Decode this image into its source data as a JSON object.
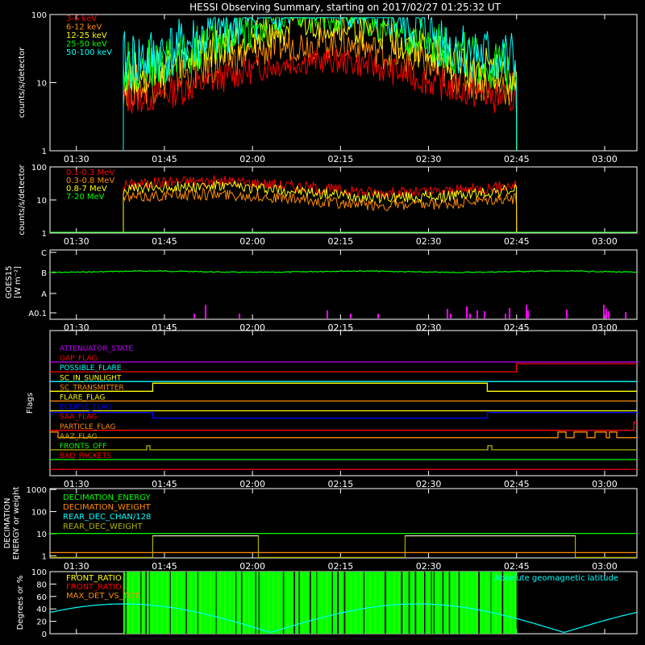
{
  "title": "HESSI Observing Summary, starting on 2017/02/27 01:25:32 UT",
  "time_ticks": [
    "01:30",
    "01:45",
    "02:00",
    "02:15",
    "02:30",
    "02:45",
    "03:00"
  ],
  "colors": {
    "red": "#ff0000",
    "orange": "#ff8c00",
    "yellow": "#ffff00",
    "green": "#00ff00",
    "cyan": "#00ffff",
    "magenta": "#ff00ff",
    "blue": "#0000ff",
    "olive": "#b0b000",
    "orchid": "#c000ff",
    "white": "#ffffff"
  },
  "chart_data": [
    {
      "id": "panel1",
      "type": "line",
      "ylabel": "counts/s/detector",
      "scale": "log",
      "ylim": [
        1,
        100
      ],
      "yticks": [
        "1",
        "10",
        "100"
      ],
      "series": [
        {
          "name": "3-6 keV",
          "color": "#ff0000"
        },
        {
          "name": "6-12 keV",
          "color": "#ff8c00"
        },
        {
          "name": "12-25 keV",
          "color": "#ffff00"
        },
        {
          "name": "25-50 keV",
          "color": "#00ff00"
        },
        {
          "name": "50-100 keV",
          "color": "#00ffff"
        }
      ]
    },
    {
      "id": "panel2",
      "type": "line",
      "ylabel": "counts/s/detector",
      "scale": "log",
      "ylim": [
        1,
        100
      ],
      "yticks": [
        "1",
        "10",
        "100"
      ],
      "series": [
        {
          "name": "0.1-0.3 MeV",
          "color": "#ff0000"
        },
        {
          "name": "0.3-0.8 MeV",
          "color": "#ff8c00"
        },
        {
          "name": "0.8-7 MeV",
          "color": "#ffff00"
        },
        {
          "name": "7-20 MeV",
          "color": "#00ff00"
        }
      ]
    },
    {
      "id": "panel3",
      "type": "line",
      "ylabel_lines": [
        "GOES15",
        "[W m⁻²]"
      ],
      "yticks": [
        "C",
        "B",
        "A",
        "A0.1"
      ]
    },
    {
      "id": "panel4",
      "type": "line",
      "ylabel": "Flags",
      "flags": [
        {
          "name": "ATTENUATOR_STATE",
          "color": "#c000ff"
        },
        {
          "name": "GAP_FLAG",
          "color": "#ff0000"
        },
        {
          "name": "POSSIBLE_FLARE",
          "color": "#00ffff"
        },
        {
          "name": "SC_IN_SUNLIGHT",
          "color": "#ffff00"
        },
        {
          "name": "SC_TRANSMITTER",
          "color": "#ff8c00"
        },
        {
          "name": "FLARE_FLAG",
          "color": "#ffff00"
        },
        {
          "name": "ECLIPSE_FLAG",
          "color": "#0000ff"
        },
        {
          "name": "SAA_FLAG",
          "color": "#ff0000"
        },
        {
          "name": "PARTICLE_FLAG",
          "color": "#ff8c00"
        },
        {
          "name": "AAZ_FLAG",
          "color": "#b0b000"
        },
        {
          "name": "FRONTS_OFF",
          "color": "#00ff00"
        },
        {
          "name": "BAD_PACKETS",
          "color": "#ff0000"
        }
      ]
    },
    {
      "id": "panel5",
      "type": "line",
      "ylabel_lines": [
        "DECIMATION",
        "ENERGY or weight"
      ],
      "yticks": [
        "1",
        "10",
        "100",
        "1000"
      ],
      "series": [
        {
          "name": "DECIMATION_ENERGY",
          "color": "#00ff00"
        },
        {
          "name": "DECIMATION_WEIGHT",
          "color": "#ff8c00"
        },
        {
          "name": "REAR_DEC_CHAN/128",
          "color": "#00ffff"
        },
        {
          "name": "REAR_DEC_WEIGHT",
          "color": "#b0b000"
        }
      ]
    },
    {
      "id": "panel6",
      "type": "line",
      "ylabel": "Degrees or %",
      "ylim": [
        0,
        100
      ],
      "yticks": [
        "0",
        "20",
        "40",
        "60",
        "80",
        "100"
      ],
      "series": [
        {
          "name": "FRONT_RATIO",
          "color": "#ffff00"
        },
        {
          "name": "FRONT_RATIO_",
          "color": "#ff0000"
        },
        {
          "name": "MAX_DET_VS_TOT",
          "color": "#ff8c00"
        }
      ],
      "annotation": "Absolute geomagnetic latitude"
    }
  ]
}
